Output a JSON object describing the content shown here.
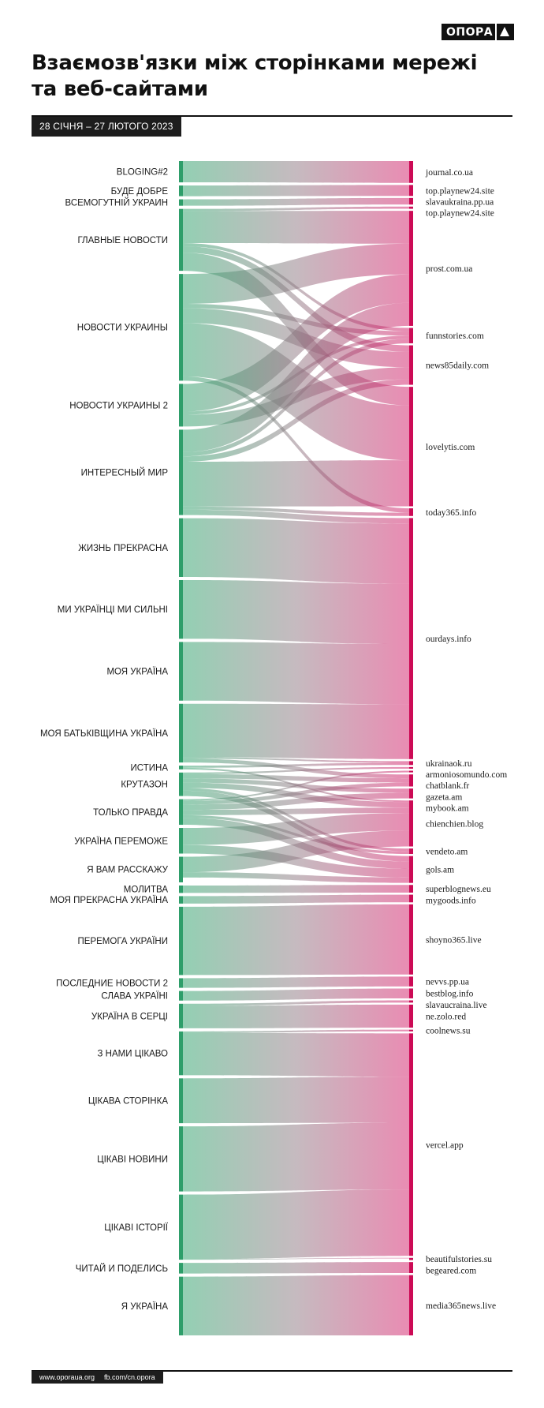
{
  "header": {
    "logo_text": "ОПОРА",
    "title_line1": "Взаємозв'язки між сторінками мережі",
    "title_line2": "та веб-сайтами",
    "date_range": "28 СІЧНЯ – 27 ЛЮТОГО 2023"
  },
  "footer": {
    "website": "www.oporaua.org",
    "facebook": "fb.com/cn.opora"
  },
  "colors": {
    "source": "#2e9e6a",
    "source_light": "#8fd0b0",
    "target": "#cc0a55",
    "target_light": "#e995bd",
    "mid": "#b7a4ac"
  },
  "chart_data": {
    "type": "sankey",
    "sources": [
      {
        "name": "BLOGING#2",
        "value": 2.0
      },
      {
        "name": "БУДЕ ДОБРЕ",
        "value": 1.0
      },
      {
        "name": "ВСЕМОГУТНІЙ УКРАИН",
        "value": 0.6
      },
      {
        "name": "ГЛАВНЫЕ НОВОСТИ",
        "value": 5.8
      },
      {
        "name": "НОВОСТИ УКРАИНЫ",
        "value": 10.0
      },
      {
        "name": "НОВОСТИ УКРАИНЫ 2",
        "value": 4.0
      },
      {
        "name": "ИНТЕРЕСНЫЙ МИР",
        "value": 8.0
      },
      {
        "name": "ЖИЗНЬ ПРЕКРАСНА",
        "value": 5.5
      },
      {
        "name": "МИ УКРАЇНЦІ МИ СИЛЬНІ",
        "value": 5.5
      },
      {
        "name": "МОЯ УКРАЇНА",
        "value": 5.5
      },
      {
        "name": "МОЯ БАТЬКІВЩИНА УКРАЇНА",
        "value": 5.5
      },
      {
        "name": "ИСТИНА",
        "value": 0.35
      },
      {
        "name": "КРУТАЗОН",
        "value": 2.2
      },
      {
        "name": "ТОЛЬКО ПРАВДА",
        "value": 2.4
      },
      {
        "name": "УКРАЇНА ПЕРЕМОЖЕ",
        "value": 2.4
      },
      {
        "name": "Я ВАМ РАССКАЖУ",
        "value": 2.4
      },
      {
        "name": "МОЛИТВА",
        "value": 0.7
      },
      {
        "name": "МОЯ ПРЕКРАСНА УКРАЇНА",
        "value": 0.7
      },
      {
        "name": "ПЕРЕМОГА УКРАЇНИ",
        "value": 6.4
      },
      {
        "name": "ПОСЛЕДНИЕ НОВОСТИ 2",
        "value": 0.9
      },
      {
        "name": "СЛАВА УКРАЇНІ",
        "value": 0.9
      },
      {
        "name": "УКРАЇНА В СЕРЦІ",
        "value": 2.3
      },
      {
        "name": "З НАМИ ЦІКАВО",
        "value": 4.1
      },
      {
        "name": "ЦІКАВА СТОРІНКА",
        "value": 4.2
      },
      {
        "name": "ЦІКАВІ НОВИНИ",
        "value": 6.1
      },
      {
        "name": "ЦІКАВІ ІСТОРІЇ",
        "value": 6.1
      },
      {
        "name": "ЧИТАЙ И ПОДЕЛИСЬ",
        "value": 1.0
      },
      {
        "name": "Я УКРАЇНА",
        "value": 5.5
      }
    ],
    "targets": [
      {
        "name": "journal.co.ua",
        "value": 2.0
      },
      {
        "name": "top.playnew24.site",
        "value": 1.0
      },
      {
        "name": "slavaukraina.pp.ua",
        "value": 0.6
      },
      {
        "name": "top.playnew24.site",
        "value": 0.2
      },
      {
        "name": "prost.com.ua",
        "value": 10.5
      },
      {
        "name": "funnstories.com",
        "value": 1.4
      },
      {
        "name": "news85daily.com",
        "value": 3.6
      },
      {
        "name": "lovelytis.com",
        "value": 10.9
      },
      {
        "name": "today365.info",
        "value": 0.7
      },
      {
        "name": "ourdays.info",
        "value": 22.0
      },
      {
        "name": "ukrainaok.ru",
        "value": 0.35
      },
      {
        "name": "armoniosomundo.com",
        "value": 0.15
      },
      {
        "name": "chatblank.fr",
        "value": 0.15
      },
      {
        "name": "gazeta.am",
        "value": 1.1
      },
      {
        "name": "mybook.am",
        "value": 0.9
      },
      {
        "name": "chienchien.blog",
        "value": 4.2
      },
      {
        "name": "vendeto.am",
        "value": 0.5
      },
      {
        "name": "gols.am",
        "value": 2.45
      },
      {
        "name": "superblognews.eu",
        "value": 0.7
      },
      {
        "name": "mygoods.info",
        "value": 0.7
      },
      {
        "name": "shoyno365.live",
        "value": 6.4
      },
      {
        "name": "nevvs.pp.ua",
        "value": 0.9
      },
      {
        "name": "bestblog.info",
        "value": 0.9
      },
      {
        "name": "slavaucraina.live",
        "value": 0.2
      },
      {
        "name": "ne.zolo.red",
        "value": 2.1
      },
      {
        "name": "coolnews.su",
        "value": 0.15
      },
      {
        "name": "vercel.app",
        "value": 20.3
      },
      {
        "name": "beautifulstories.su",
        "value": 0.2
      },
      {
        "name": "begeared.com",
        "value": 1.0
      },
      {
        "name": "media365news.live",
        "value": 5.5
      }
    ],
    "flows": [
      {
        "source": "BLOGING#2",
        "target": "journal.co.ua",
        "value": 2.0
      },
      {
        "source": "БУДЕ ДОБРЕ",
        "target": "top.playnew24.site",
        "value": 1.0
      },
      {
        "source": "ВСЕМОГУТНІЙ УКРАИН",
        "target": "slavaukraina.pp.ua",
        "value": 0.6
      },
      {
        "source": "ГЛАВНЫЕ НОВОСТИ",
        "target": "top.playnew24.site",
        "value": 0.2,
        "target_index": 3
      },
      {
        "source": "ГЛАВНЫЕ НОВОСТИ",
        "target": "prost.com.ua",
        "value": 3.0
      },
      {
        "source": "ГЛАВНЫЕ НОВОСТИ",
        "target": "funnstories.com",
        "value": 0.3
      },
      {
        "source": "ГЛАВНЫЕ НОВОСТИ",
        "target": "news85daily.com",
        "value": 0.6
      },
      {
        "source": "ГЛАВНЫЕ НОВОСТИ",
        "target": "lovelytis.com",
        "value": 1.7
      },
      {
        "source": "НОВОСТИ УКРАИНЫ",
        "target": "prost.com.ua",
        "value": 2.8
      },
      {
        "source": "НОВОСТИ УКРАИНЫ",
        "target": "funnstories.com",
        "value": 0.4
      },
      {
        "source": "НОВОСТИ УКРАИНЫ",
        "target": "news85daily.com",
        "value": 1.4
      },
      {
        "source": "НОВОСТИ УКРАИНЫ",
        "target": "lovelytis.com",
        "value": 5.0
      },
      {
        "source": "НОВОСТИ УКРАИНЫ",
        "target": "today365.info",
        "value": 0.4
      },
      {
        "source": "НОВОСТИ УКРАИНЫ 2",
        "target": "prost.com.ua",
        "value": 2.6
      },
      {
        "source": "НОВОСТИ УКРАИНЫ 2",
        "target": "funnstories.com",
        "value": 0.3
      },
      {
        "source": "НОВОСТИ УКРАИНЫ 2",
        "target": "news85daily.com",
        "value": 1.1
      },
      {
        "source": "ИНТЕРЕСНЫЙ МИР",
        "target": "prost.com.ua",
        "value": 2.1
      },
      {
        "source": "ИНТЕРЕСНЫЙ МИР",
        "target": "funnstories.com",
        "value": 0.4
      },
      {
        "source": "ИНТЕРЕСНЫЙ МИР",
        "target": "news85daily.com",
        "value": 0.5
      },
      {
        "source": "ИНТЕРЕСНЫЙ МИР",
        "target": "lovelytis.com",
        "value": 4.2
      },
      {
        "source": "ИНТЕРЕСНЫЙ МИР",
        "target": "today365.info",
        "value": 0.3
      },
      {
        "source": "ИНТЕРЕСНЫЙ МИР",
        "target": "ourdays.info",
        "value": 0.5
      },
      {
        "source": "ЖИЗНЬ ПРЕКРАСНА",
        "target": "ourdays.info",
        "value": 5.5
      },
      {
        "source": "МИ УКРАЇНЦІ МИ СИЛЬНІ",
        "target": "ourdays.info",
        "value": 5.5
      },
      {
        "source": "МОЯ УКРАЇНА",
        "target": "ourdays.info",
        "value": 5.5
      },
      {
        "source": "МОЯ БАТЬКІВЩИНА УКРАЇНА",
        "target": "ourdays.info",
        "value": 5.0
      },
      {
        "source": "МОЯ БАТЬКІВЩИНА УКРАЇНА",
        "target": "ukrainaok.ru",
        "value": 0.15
      },
      {
        "source": "МОЯ БАТЬКІВЩИНА УКРАЇНА",
        "target": "gazeta.am",
        "value": 0.35
      },
      {
        "source": "ИСТИНА",
        "target": "ukrainaok.ru",
        "value": 0.2
      },
      {
        "source": "ИСТИНА",
        "target": "chienchien.blog",
        "value": 0.15
      },
      {
        "source": "КРУТАЗОН",
        "target": "armoniosomundo.com",
        "value": 0.15
      },
      {
        "source": "КРУТАЗОН",
        "target": "gazeta.am",
        "value": 0.4
      },
      {
        "source": "КРУТАЗОН",
        "target": "mybook.am",
        "value": 0.4
      },
      {
        "source": "КРУТАЗОН",
        "target": "chienchien.blog",
        "value": 0.5
      },
      {
        "source": "КРУТАЗОН",
        "target": "vendeto.am",
        "value": 0.25
      },
      {
        "source": "КРУТАЗОН",
        "target": "gols.am",
        "value": 0.5
      },
      {
        "source": "ТОЛЬКО ПРАВДА",
        "target": "chatblank.fr",
        "value": 0.15
      },
      {
        "source": "ТОЛЬКО ПРАВДА",
        "target": "gazeta.am",
        "value": 0.35
      },
      {
        "source": "ТОЛЬКО ПРАВДА",
        "target": "mybook.am",
        "value": 0.5
      },
      {
        "source": "ТОЛЬКО ПРАВДА",
        "target": "chienchien.blog",
        "value": 0.5
      },
      {
        "source": "ТОЛЬКО ПРАВДА",
        "target": "vendeto.am",
        "value": 0.25
      },
      {
        "source": "ТОЛЬКО ПРАВДА",
        "target": "gols.am",
        "value": 0.65
      },
      {
        "source": "УКРАЇНА ПЕРЕМОЖЕ",
        "target": "chienchien.blog",
        "value": 1.6
      },
      {
        "source": "УКРАЇНА ПЕРЕМОЖЕ",
        "target": "gols.am",
        "value": 0.8
      },
      {
        "source": "Я ВАМ РАССКАЖУ",
        "target": "chienchien.blog",
        "value": 1.45
      },
      {
        "source": "Я ВАМ РАССКАЖУ",
        "target": "gols.am",
        "value": 0.5
      },
      {
        "source": "МОЛИТВА",
        "target": "superblognews.eu",
        "value": 0.7
      },
      {
        "source": "МОЯ ПРЕКРАСНА УКРАЇНА",
        "target": "mygoods.info",
        "value": 0.7
      },
      {
        "source": "ПЕРЕМОГА УКРАЇНИ",
        "target": "shoyno365.live",
        "value": 6.4
      },
      {
        "source": "ПОСЛЕДНИЕ НОВОСТИ 2",
        "target": "nevvs.pp.ua",
        "value": 0.9
      },
      {
        "source": "СЛАВА УКРАЇНІ",
        "target": "bestblog.info",
        "value": 0.9
      },
      {
        "source": "УКРАЇНА В СЕРЦІ",
        "target": "slavaucraina.live",
        "value": 0.2
      },
      {
        "source": "УКРАЇНА В СЕРЦІ",
        "target": "ne.zolo.red",
        "value": 2.1
      },
      {
        "source": "З НАМИ ЦІКАВО",
        "target": "coolnews.su",
        "value": 0.15
      },
      {
        "source": "З НАМИ ЦІКАВО",
        "target": "vercel.app",
        "value": 3.95
      },
      {
        "source": "ЦІКАВА СТОРІНКА",
        "target": "vercel.app",
        "value": 4.2
      },
      {
        "source": "ЦІКАВІ НОВИНИ",
        "target": "vercel.app",
        "value": 6.1
      },
      {
        "source": "ЦІКАВІ ІСТОРІЇ",
        "target": "vercel.app",
        "value": 6.05
      },
      {
        "source": "ЦІКАВІ ІСТОРІЇ",
        "target": "beautifulstories.su",
        "value": 0.05
      },
      {
        "source": "ЧИТАЙ И ПОДЕЛИСЬ",
        "target": "begeared.com",
        "value": 1.0
      },
      {
        "source": "Я УКРАЇНА",
        "target": "media365news.live",
        "value": 5.5
      }
    ]
  }
}
